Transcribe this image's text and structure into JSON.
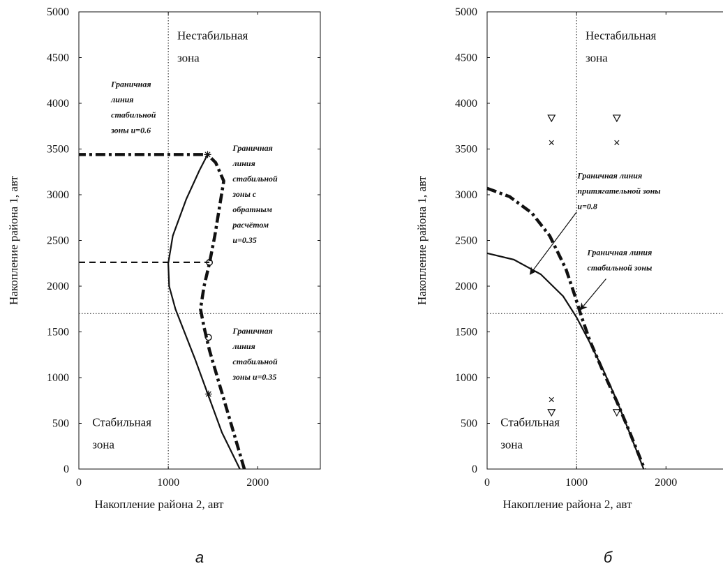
{
  "chart_data": [
    {
      "type": "line",
      "caption": "а",
      "xlabel": "Накопление района 2, авт",
      "ylabel": "Накопление района 1, авт",
      "xlim": [
        0,
        2700
      ],
      "ylim": [
        0,
        5000
      ],
      "xticks": [
        "0",
        "1000",
        "2000"
      ],
      "yticks": [
        "0",
        "500",
        "1000",
        "1500",
        "2000",
        "2500",
        "3000",
        "3500",
        "4000",
        "4500",
        "5000"
      ],
      "grid": false,
      "reference_lines": {
        "x": 1000,
        "y": 1700
      },
      "zones": [
        {
          "lines": [
            "Нестабильная",
            "зона"
          ],
          "x": 1100,
          "y": 4700
        },
        {
          "lines": [
            "Стабильная",
            "зона"
          ],
          "x": 150,
          "y": 470
        }
      ],
      "series": [
        {
          "style": "solid",
          "width": 2.2,
          "points": [
            [
              1800,
              0
            ],
            [
              1600,
              400
            ],
            [
              1450,
              800
            ],
            [
              1300,
              1200
            ],
            [
              1180,
              1500
            ],
            [
              1080,
              1750
            ],
            [
              1010,
              2000
            ],
            [
              1000,
              2250
            ],
            [
              1050,
              2550
            ],
            [
              1200,
              2950
            ],
            [
              1350,
              3270
            ],
            [
              1440,
              3440
            ]
          ]
        },
        {
          "style": "dashdot",
          "width": 4.5,
          "points": [
            [
              1850,
              0
            ],
            [
              1700,
              500
            ],
            [
              1550,
              1000
            ],
            [
              1460,
              1300
            ],
            [
              1400,
              1550
            ],
            [
              1360,
              1750
            ],
            [
              1400,
              2000
            ],
            [
              1460,
              2250
            ],
            [
              1520,
              2550
            ],
            [
              1570,
              2850
            ],
            [
              1620,
              3150
            ],
            [
              1530,
              3350
            ],
            [
              1440,
              3440
            ],
            [
              0,
              3440
            ]
          ]
        },
        {
          "style": "dashed",
          "width": 2.2,
          "points": [
            [
              0,
              2260
            ],
            [
              1460,
              2260
            ]
          ]
        }
      ],
      "markers": [
        {
          "symbol": "star",
          "x": 1440,
          "y": 3440
        },
        {
          "symbol": "circle",
          "x": 1460,
          "y": 2260
        },
        {
          "symbol": "circle",
          "x": 1450,
          "y": 1440
        },
        {
          "symbol": "star",
          "x": 1450,
          "y": 820
        }
      ],
      "annotations": [
        {
          "lines": [
            "Граничная",
            "линия",
            "стабильной",
            "зоны u=0.6"
          ],
          "x": 360,
          "y": 4180
        },
        {
          "lines": [
            "Граничная",
            "линия",
            "стабильной",
            "зоны с",
            "обратным",
            "расчётом",
            "u=0.35"
          ],
          "x": 1720,
          "y": 3480
        },
        {
          "lines": [
            "Граничная",
            "линия",
            "стабильной",
            "зоны u=0.35"
          ],
          "x": 1720,
          "y": 1480
        }
      ]
    },
    {
      "type": "line",
      "caption": "б",
      "xlabel": "Накопление района 2, авт",
      "ylabel": "Накопление района 1, авт",
      "xlim": [
        0,
        2700
      ],
      "ylim": [
        0,
        5000
      ],
      "xticks": [
        "0",
        "1000",
        "2000"
      ],
      "yticks": [
        "0",
        "500",
        "1000",
        "1500",
        "2000",
        "2500",
        "3000",
        "3500",
        "4000",
        "4500",
        "5000"
      ],
      "grid": false,
      "reference_lines": {
        "x": 1000,
        "y": 1700
      },
      "zones": [
        {
          "lines": [
            "Нестабильная",
            "зона"
          ],
          "x": 1100,
          "y": 4700
        },
        {
          "lines": [
            "Стабильная",
            "зона"
          ],
          "x": 150,
          "y": 470
        }
      ],
      "series": [
        {
          "style": "solid",
          "width": 2.2,
          "points": [
            [
              0,
              2360
            ],
            [
              300,
              2290
            ],
            [
              600,
              2130
            ],
            [
              850,
              1890
            ],
            [
              1000,
              1660
            ],
            [
              1150,
              1380
            ],
            [
              1300,
              1080
            ],
            [
              1450,
              750
            ],
            [
              1600,
              380
            ],
            [
              1750,
              0
            ]
          ]
        },
        {
          "style": "dashdot",
          "width": 4.5,
          "points": [
            [
              0,
              3070
            ],
            [
              250,
              2980
            ],
            [
              500,
              2800
            ],
            [
              700,
              2550
            ],
            [
              880,
              2190
            ],
            [
              980,
              1900
            ],
            [
              1050,
              1680
            ],
            [
              1150,
              1400
            ],
            [
              1300,
              1060
            ],
            [
              1450,
              740
            ],
            [
              1600,
              390
            ],
            [
              1760,
              0
            ]
          ]
        }
      ],
      "markers": [
        {
          "symbol": "triangle-down",
          "x": 720,
          "y": 3840
        },
        {
          "symbol": "triangle-down",
          "x": 1450,
          "y": 3840
        },
        {
          "symbol": "x",
          "x": 720,
          "y": 3570
        },
        {
          "symbol": "x",
          "x": 1450,
          "y": 3570
        },
        {
          "symbol": "x",
          "x": 720,
          "y": 760
        },
        {
          "symbol": "triangle-down",
          "x": 720,
          "y": 620
        },
        {
          "symbol": "triangle-down",
          "x": 1450,
          "y": 620
        }
      ],
      "annotations": [
        {
          "lines": [
            "Граничная линия",
            "притягательной зоны",
            "u=0.8"
          ],
          "x": 1010,
          "y": 3180
        },
        {
          "lines": [
            "Граничная линия",
            "стабильной зоны"
          ],
          "x": 1120,
          "y": 2340
        }
      ],
      "arrows": [
        {
          "from": [
            1000,
            2810
          ],
          "to": [
            480,
            2130
          ]
        },
        {
          "from": [
            1330,
            2080
          ],
          "to": [
            1040,
            1740
          ]
        }
      ]
    }
  ]
}
